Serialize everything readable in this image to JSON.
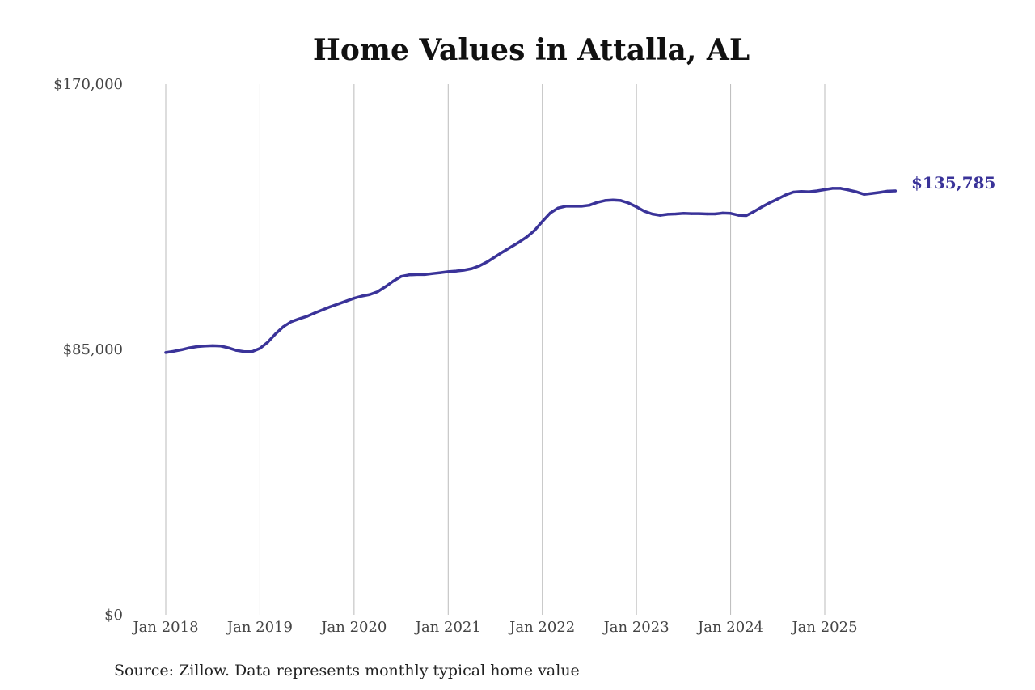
{
  "colors": {
    "series": "#3a3399",
    "grid": "#bbbbbb",
    "text": "#444444"
  },
  "chart_data": {
    "type": "line",
    "title": "Home Values in Attalla, AL",
    "xlabel": "",
    "ylabel": "",
    "grid": "vertical",
    "ylim": [
      0,
      170000
    ],
    "xlim": [
      "2018-01",
      "2025-11"
    ],
    "x_tick_labels": [
      "Jan 2018",
      "Jan 2019",
      "Jan 2020",
      "Jan 2021",
      "Jan 2022",
      "Jan 2023",
      "Jan 2024",
      "Jan 2025"
    ],
    "y_tick_labels": [
      "$170,000",
      "$85,000",
      "$0"
    ],
    "y_ticks": [
      170000,
      85000,
      0
    ],
    "end_label": "$135,785",
    "source": "Source: Zillow. Data represents monthly typical home value",
    "series": [
      {
        "x": [
          "2018-01",
          "2018-02",
          "2018-03",
          "2018-04",
          "2018-05",
          "2018-06",
          "2018-07",
          "2018-08",
          "2018-09",
          "2018-10",
          "2018-11",
          "2018-12",
          "2019-01",
          "2019-02",
          "2019-03",
          "2019-04",
          "2019-05",
          "2019-06",
          "2019-07",
          "2019-08",
          "2019-09",
          "2019-10",
          "2019-11",
          "2019-12",
          "2020-01",
          "2020-02",
          "2020-03",
          "2020-04",
          "2020-05",
          "2020-06",
          "2020-07",
          "2020-08",
          "2020-09",
          "2020-10",
          "2020-11",
          "2020-12",
          "2021-01",
          "2021-02",
          "2021-03",
          "2021-04",
          "2021-05",
          "2021-06",
          "2021-07",
          "2021-08",
          "2021-09",
          "2021-10",
          "2021-11",
          "2021-12",
          "2022-01",
          "2022-02",
          "2022-03",
          "2022-04",
          "2022-05",
          "2022-06",
          "2022-07",
          "2022-08",
          "2022-09",
          "2022-10",
          "2022-11",
          "2022-12",
          "2023-01",
          "2023-02",
          "2023-03",
          "2023-04",
          "2023-05",
          "2023-06",
          "2023-07",
          "2023-08",
          "2023-09",
          "2023-10",
          "2023-11",
          "2023-12",
          "2024-01",
          "2024-02",
          "2024-03",
          "2024-04",
          "2024-05",
          "2024-06",
          "2024-07",
          "2024-08",
          "2024-09",
          "2024-10",
          "2024-11",
          "2024-12",
          "2025-01",
          "2025-02",
          "2025-03",
          "2025-04",
          "2025-05",
          "2025-06",
          "2025-07",
          "2025-08",
          "2025-09",
          "2025-10"
        ],
        "values": [
          84000,
          84400,
          84900,
          85500,
          85900,
          86100,
          86200,
          86100,
          85500,
          84700,
          84300,
          84300,
          85300,
          87300,
          90000,
          92300,
          93900,
          94800,
          95600,
          96700,
          97700,
          98700,
          99600,
          100500,
          101400,
          102100,
          102600,
          103500,
          105100,
          106900,
          108400,
          108900,
          109000,
          109000,
          109300,
          109600,
          109900,
          110100,
          110400,
          110900,
          111800,
          113100,
          114700,
          116300,
          117800,
          119300,
          121000,
          123100,
          126000,
          128700,
          130300,
          130900,
          130900,
          130900,
          131200,
          132100,
          132700,
          132900,
          132700,
          131900,
          130700,
          129300,
          128400,
          128000,
          128300,
          128400,
          128600,
          128500,
          128500,
          128400,
          128400,
          128700,
          128600,
          128000,
          127900,
          129200,
          130700,
          132000,
          133200,
          134500,
          135400,
          135600,
          135500,
          135800,
          136200,
          136600,
          136600,
          136100,
          135500,
          134700,
          135000,
          135300,
          135700,
          135785
        ]
      }
    ]
  }
}
